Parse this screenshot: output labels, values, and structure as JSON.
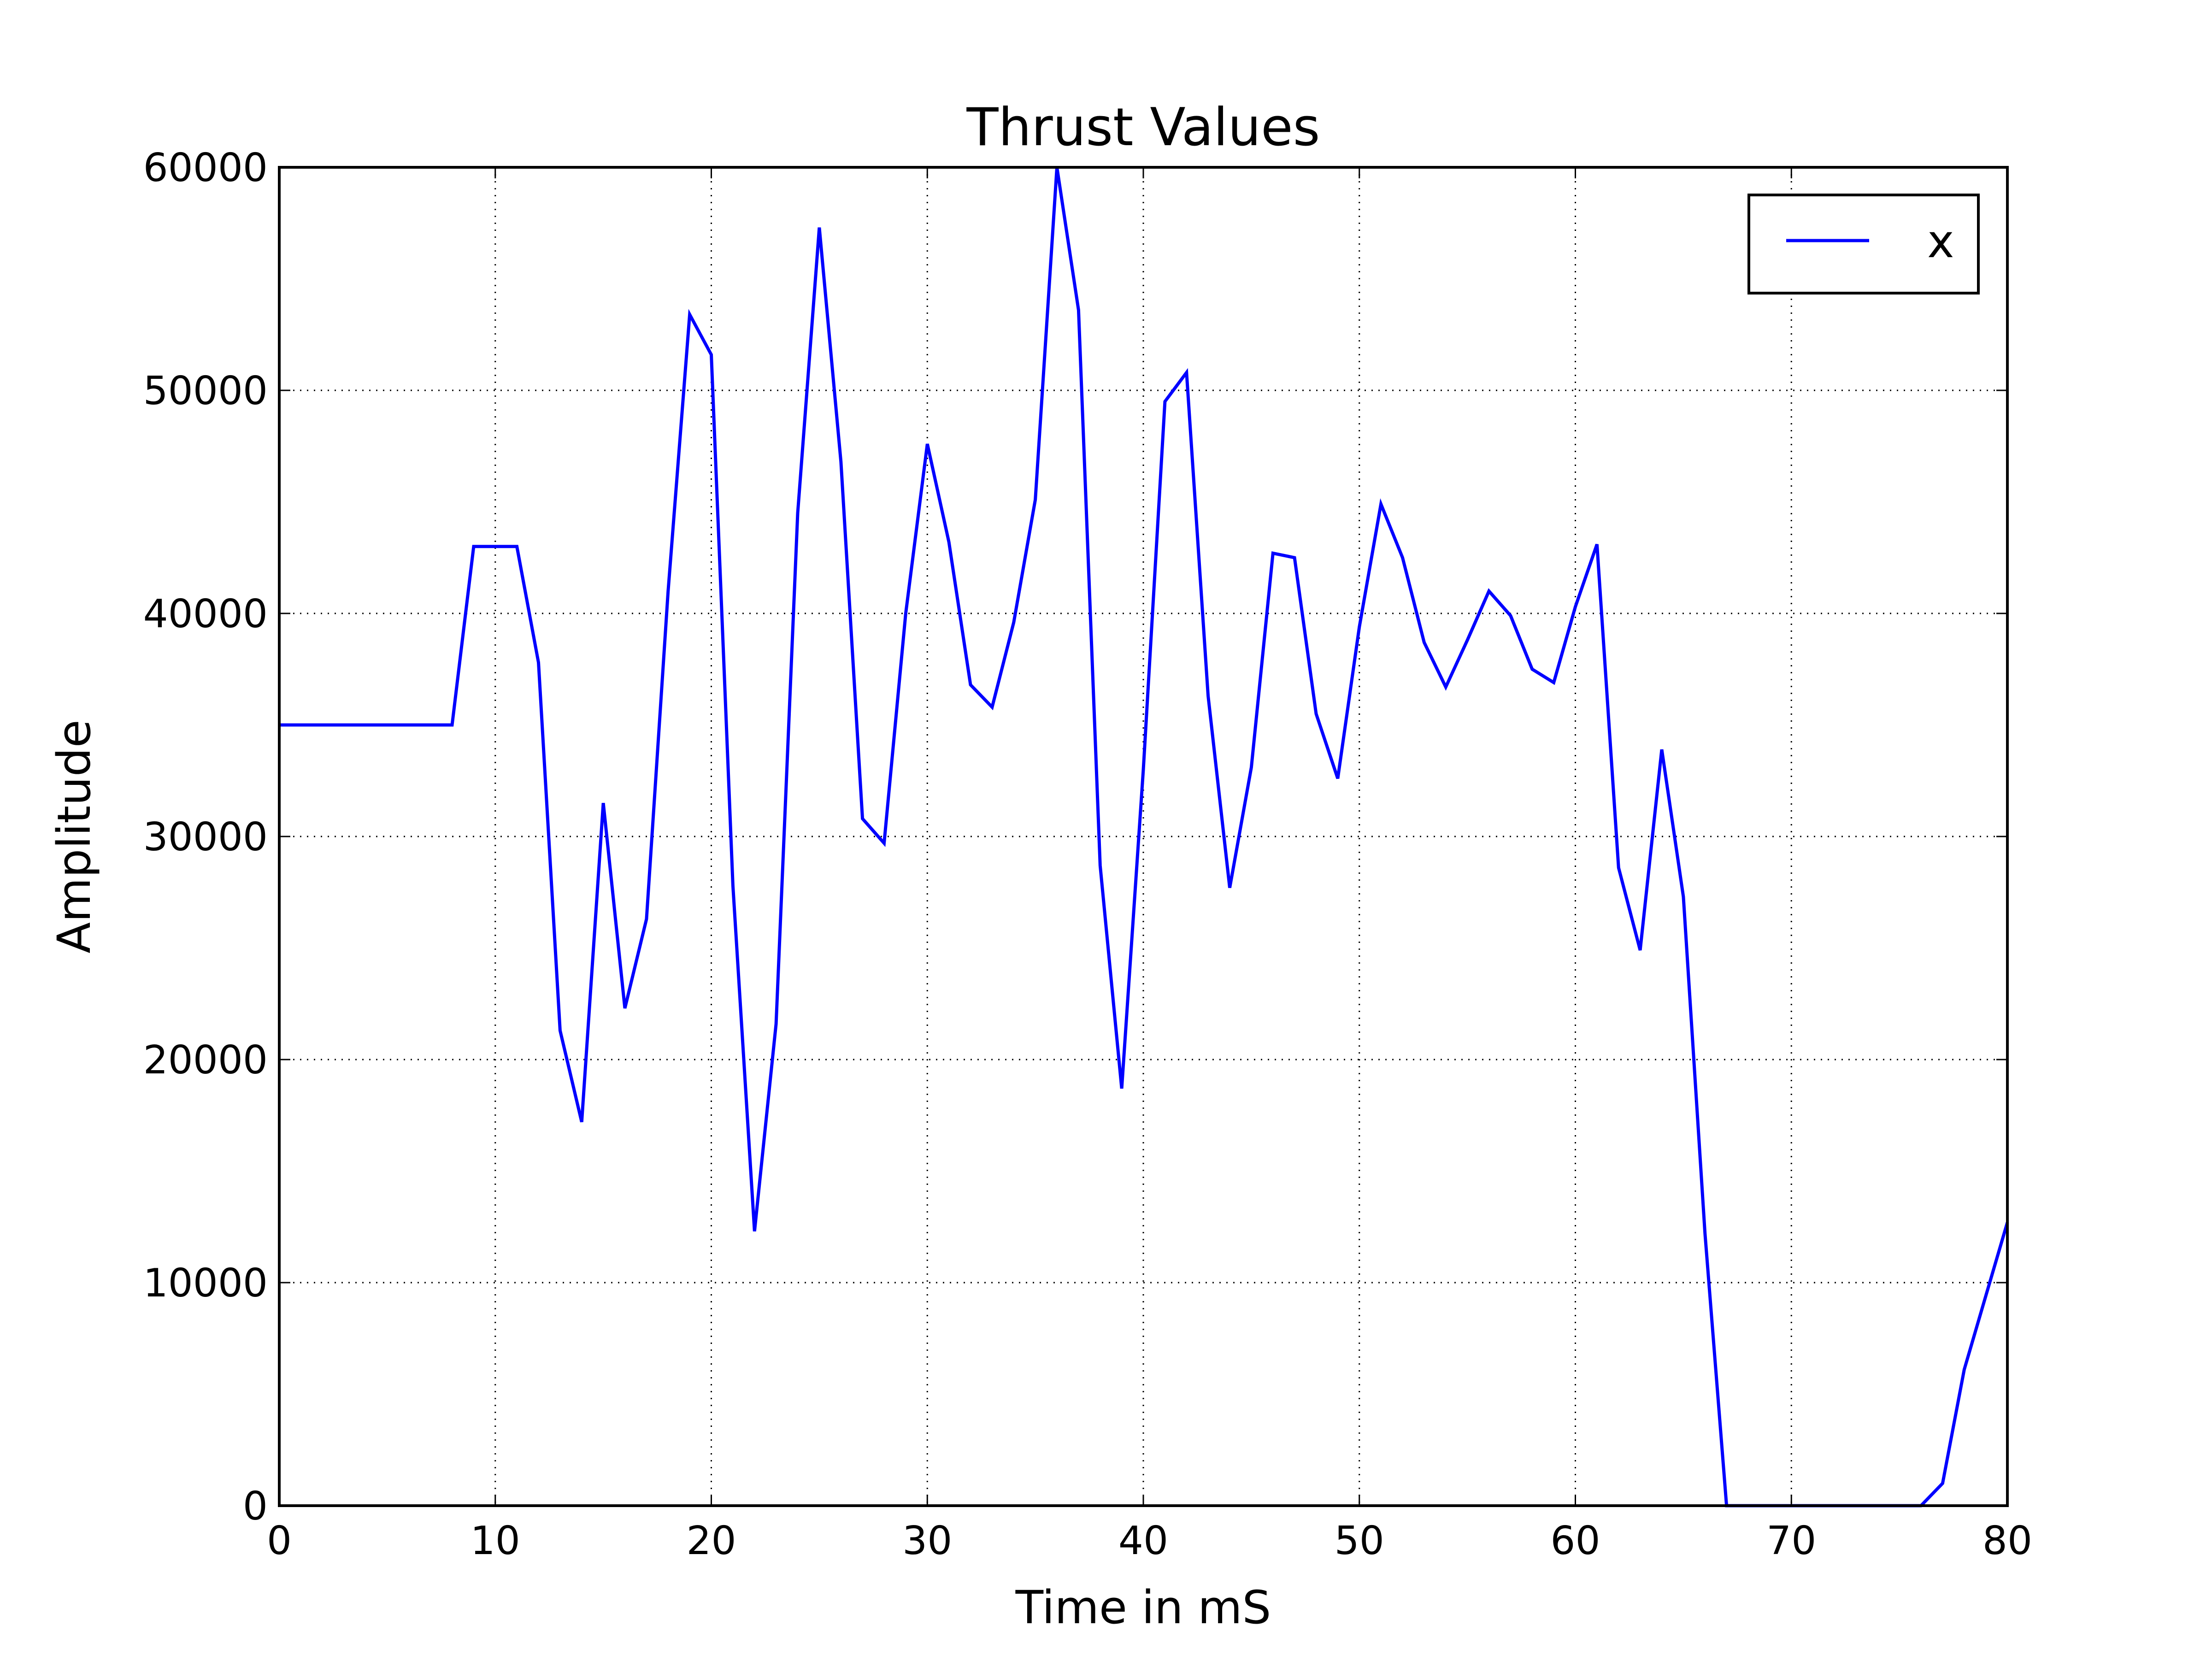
{
  "chart_data": {
    "type": "line",
    "title": "Thrust Values",
    "xlabel": "Time in mS",
    "ylabel": "Amplitude",
    "xlim": [
      0,
      80
    ],
    "ylim": [
      0,
      60000
    ],
    "xticks": [
      "0",
      "10",
      "20",
      "30",
      "40",
      "50",
      "60",
      "70",
      "80"
    ],
    "yticks": [
      "0",
      "10000",
      "20000",
      "30000",
      "40000",
      "50000",
      "60000"
    ],
    "grid": true,
    "legend_position": "top-right",
    "series": [
      {
        "name": "x",
        "color": "#0000ff",
        "x": [
          0,
          1,
          2,
          3,
          4,
          5,
          6,
          7,
          8,
          9,
          10,
          11,
          12,
          13,
          14,
          15,
          16,
          17,
          18,
          19,
          20,
          21,
          22,
          23,
          24,
          25,
          26,
          27,
          28,
          29,
          30,
          31,
          32,
          33,
          34,
          35,
          36,
          37,
          38,
          39,
          40,
          41,
          42,
          43,
          44,
          45,
          46,
          47,
          48,
          49,
          50,
          51,
          52,
          53,
          54,
          55,
          56,
          57,
          58,
          59,
          60,
          61,
          62,
          63,
          64,
          65,
          66,
          67,
          68,
          69,
          70,
          71,
          72,
          73,
          74,
          75,
          76,
          77,
          78,
          79,
          80
        ],
        "y": [
          35000,
          35000,
          35000,
          35000,
          35000,
          35000,
          35000,
          35000,
          35000,
          43000,
          43000,
          43000,
          37800,
          21300,
          17200,
          31500,
          22300,
          26300,
          41000,
          53400,
          51600,
          27800,
          12300,
          21600,
          44500,
          57300,
          46800,
          30800,
          29700,
          40000,
          47600,
          43200,
          36800,
          35800,
          39600,
          45100,
          60000,
          53600,
          28700,
          18700,
          33000,
          49500,
          50800,
          36300,
          27700,
          33100,
          42700,
          42500,
          35500,
          32600,
          39400,
          44900,
          42500,
          38700,
          36700,
          38800,
          41000,
          39900,
          37500,
          36900,
          40300,
          43100,
          28600,
          24900,
          33900,
          27300,
          12200,
          0,
          0,
          0,
          0,
          0,
          0,
          0,
          0,
          0,
          0,
          1000,
          6100,
          9400,
          12700
        ]
      }
    ]
  }
}
